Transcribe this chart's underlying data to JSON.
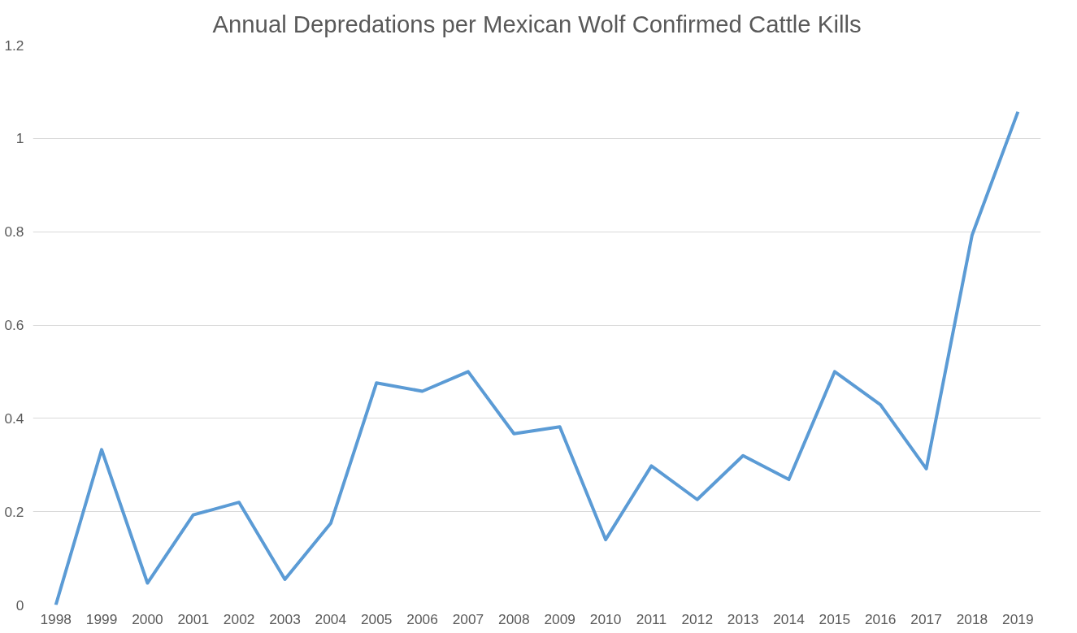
{
  "chart_data": {
    "type": "line",
    "title": "Annual Depredations per Mexican Wolf Confirmed Cattle Kills",
    "categories": [
      "1998",
      "1999",
      "2000",
      "2001",
      "2002",
      "2003",
      "2004",
      "2005",
      "2006",
      "2007",
      "2008",
      "2009",
      "2010",
      "2011",
      "2012",
      "2013",
      "2014",
      "2015",
      "2016",
      "2017",
      "2018",
      "2019"
    ],
    "series": [
      {
        "color": "#5b9bd5",
        "values": [
          0,
          0.333,
          0.047,
          0.193,
          0.22,
          0.055,
          0.175,
          0.476,
          0.458,
          0.5,
          0.367,
          0.382,
          0.14,
          0.298,
          0.226,
          0.32,
          0.269,
          0.5,
          0.429,
          0.292,
          0.793,
          1.057
        ]
      }
    ],
    "ylim": [
      0,
      1.2
    ],
    "yticks": [
      0,
      0.2,
      0.4,
      0.6,
      0.8,
      1,
      1.2
    ],
    "grid": "y",
    "marker": "none",
    "line_style": "solid"
  }
}
